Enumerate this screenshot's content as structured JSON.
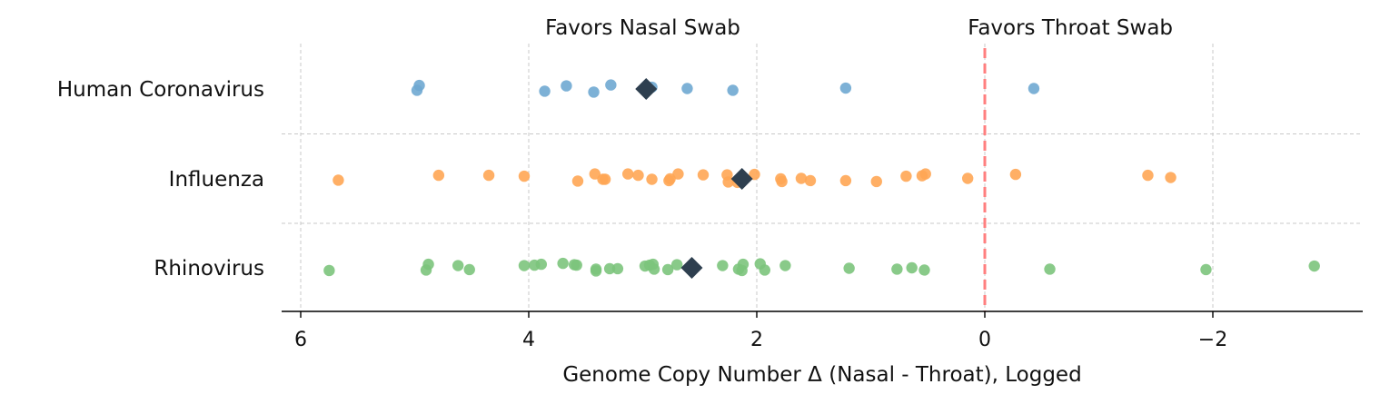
{
  "chart_data": {
    "type": "scatter",
    "subtype": "horizontal strip plot with mean markers",
    "xlabel": "Genome Copy Number Δ (Nasal - Throat), Logged",
    "x_direction": "reversed",
    "xlim": [
      6.15,
      -3.35
    ],
    "xticks": [
      6,
      4,
      2,
      0,
      -2
    ],
    "xtick_labels": [
      "6",
      "4",
      "2",
      "0",
      "−2"
    ],
    "grid": "dashed vertical at x ticks; dashed horizontal between categories",
    "reference_line": {
      "x": 0,
      "color": "#ff7f7f",
      "style": "dashed"
    },
    "annotations": [
      {
        "text": "Favors Nasal Swab",
        "x": 3.0
      },
      {
        "text": "Favors Throat Swab",
        "x": -0.75
      }
    ],
    "categories": [
      "Human Coronavirus",
      "Influenza",
      "Rhinovirus"
    ],
    "mean_marker": {
      "shape": "diamond",
      "color": "#2e3f4f"
    },
    "series": [
      {
        "name": "Human Coronavirus",
        "color": "#6fa8d1",
        "mean": 2.97,
        "points": [
          [
            4.96,
            -0.08
          ],
          [
            4.98,
            0.03
          ],
          [
            3.67,
            -0.07
          ],
          [
            3.86,
            0.05
          ],
          [
            3.43,
            0.07
          ],
          [
            3.28,
            -0.09
          ],
          [
            2.92,
            -0.04
          ],
          [
            2.61,
            -0.01
          ],
          [
            2.21,
            0.03
          ],
          [
            1.22,
            -0.02
          ],
          [
            -0.43,
            -0.01
          ]
        ]
      },
      {
        "name": "Influenza",
        "color": "#ffa654",
        "mean": 2.13,
        "points": [
          [
            5.67,
            0.03
          ],
          [
            4.79,
            -0.08
          ],
          [
            4.35,
            -0.08
          ],
          [
            4.04,
            -0.06
          ],
          [
            3.57,
            0.05
          ],
          [
            3.42,
            -0.11
          ],
          [
            3.35,
            0.01
          ],
          [
            3.33,
            0.01
          ],
          [
            3.13,
            -0.11
          ],
          [
            3.04,
            -0.08
          ],
          [
            2.92,
            0.01
          ],
          [
            2.77,
            0.04
          ],
          [
            2.76,
            0.0
          ],
          [
            2.69,
            -0.11
          ],
          [
            2.47,
            -0.09
          ],
          [
            2.26,
            -0.09
          ],
          [
            2.25,
            0.07
          ],
          [
            2.17,
            0.08
          ],
          [
            2.02,
            -0.1
          ],
          [
            1.79,
            0.0
          ],
          [
            1.78,
            0.06
          ],
          [
            1.61,
            -0.01
          ],
          [
            1.53,
            0.04
          ],
          [
            1.22,
            0.04
          ],
          [
            0.95,
            0.06
          ],
          [
            0.69,
            -0.06
          ],
          [
            0.55,
            -0.07
          ],
          [
            0.52,
            -0.11
          ],
          [
            0.15,
            -0.01
          ],
          [
            -0.27,
            -0.1
          ],
          [
            -1.43,
            -0.08
          ],
          [
            -1.63,
            -0.03
          ]
        ]
      },
      {
        "name": "Rhinovirus",
        "color": "#7cc47c",
        "mean": 2.57,
        "points": [
          [
            5.75,
            0.06
          ],
          [
            4.88,
            -0.08
          ],
          [
            4.9,
            0.05
          ],
          [
            4.62,
            -0.05
          ],
          [
            4.52,
            0.04
          ],
          [
            4.04,
            -0.05
          ],
          [
            3.95,
            -0.06
          ],
          [
            3.89,
            -0.08
          ],
          [
            3.7,
            -0.1
          ],
          [
            3.6,
            -0.07
          ],
          [
            3.58,
            -0.06
          ],
          [
            3.41,
            0.03
          ],
          [
            3.41,
            0.07
          ],
          [
            3.29,
            0.02
          ],
          [
            3.22,
            0.02
          ],
          [
            2.98,
            -0.04
          ],
          [
            2.94,
            -0.06
          ],
          [
            2.91,
            -0.08
          ],
          [
            2.9,
            0.03
          ],
          [
            2.78,
            0.04
          ],
          [
            2.7,
            -0.07
          ],
          [
            2.3,
            -0.05
          ],
          [
            2.16,
            0.03
          ],
          [
            2.12,
            -0.08
          ],
          [
            2.13,
            0.06
          ],
          [
            1.97,
            -0.09
          ],
          [
            1.93,
            0.05
          ],
          [
            1.75,
            -0.05
          ],
          [
            1.19,
            0.01
          ],
          [
            0.77,
            0.03
          ],
          [
            0.64,
            0.0
          ],
          [
            0.53,
            0.05
          ],
          [
            -0.57,
            0.03
          ],
          [
            -1.94,
            0.04
          ],
          [
            -2.89,
            -0.04
          ]
        ]
      }
    ]
  }
}
